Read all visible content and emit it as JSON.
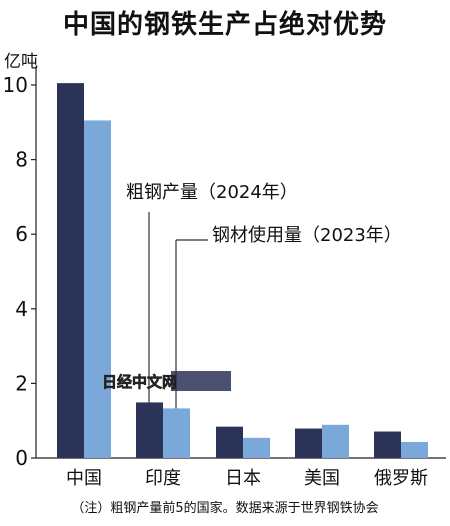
{
  "chart_data": {
    "type": "bar",
    "title": "中国的钢铁生产占绝对优势",
    "ylabel": "亿吨",
    "ylim": [
      0,
      10.5
    ],
    "yticks": [
      0,
      2,
      4,
      6,
      8,
      10
    ],
    "categories": [
      "中国",
      "印度",
      "日本",
      "美国",
      "俄罗斯"
    ],
    "series": [
      {
        "name": "粗钢产量（2024年）",
        "color": "#2b3358",
        "values": [
          10.05,
          1.49,
          0.84,
          0.79,
          0.71
        ]
      },
      {
        "name": "钢材使用量（2023年）",
        "color": "#7aa8d8",
        "values": [
          9.05,
          1.33,
          0.54,
          0.89,
          0.43
        ]
      }
    ],
    "note": "（注）粗钢产量前5的国家。数据来源于世界钢铁协会",
    "watermark": "日经中文网"
  }
}
